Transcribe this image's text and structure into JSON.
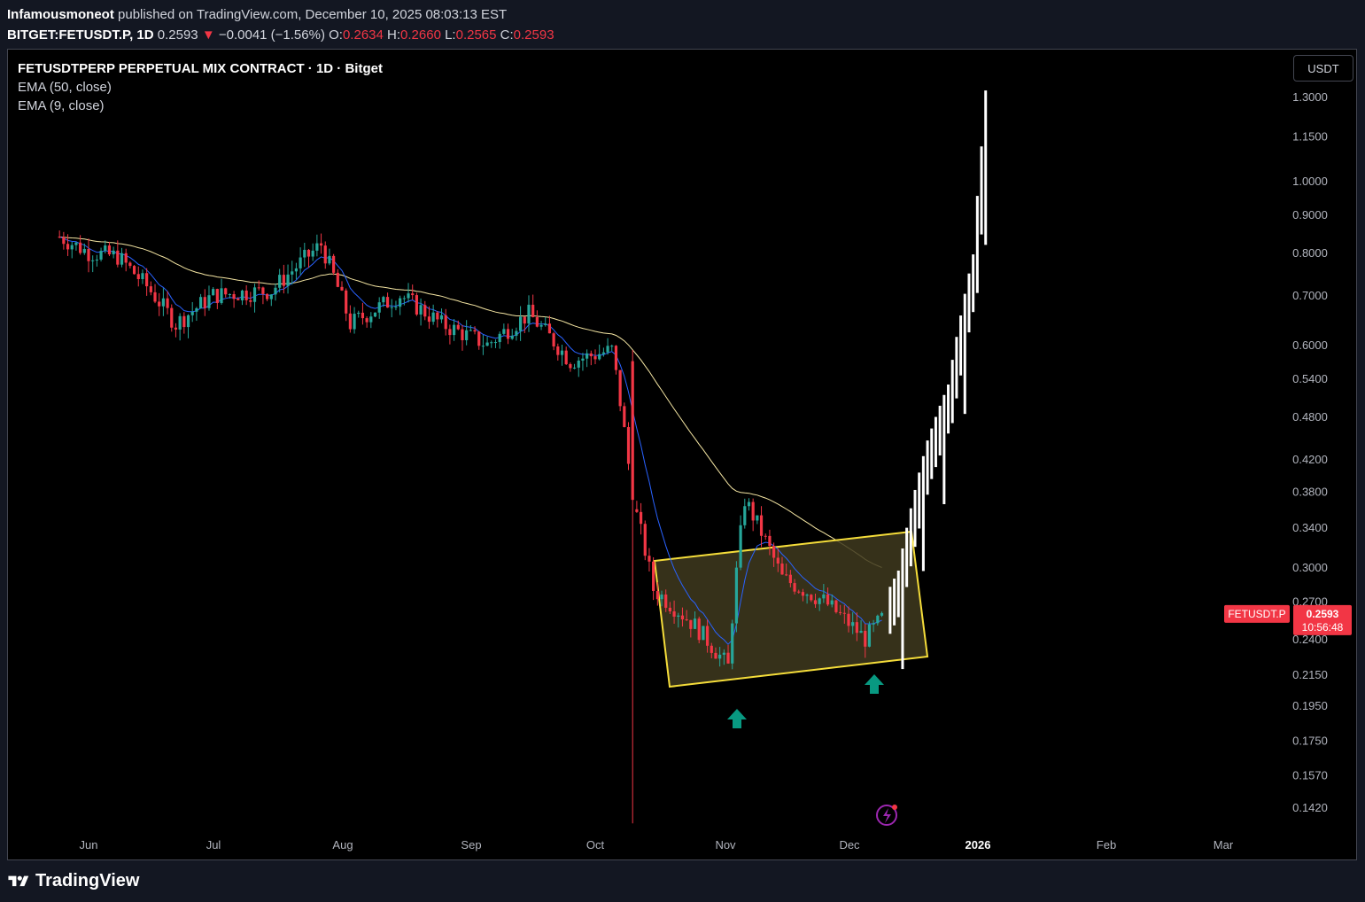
{
  "header": {
    "author": "Infamousmoneot",
    "published_text": "published on TradingView.com, December 10, 2025 08:03:13 EST"
  },
  "quote": {
    "symbol": "BITGET:FETUSDT.P, 1D",
    "last": "0.2593",
    "arrow": "▼",
    "change": "−0.0041 (−1.56%)",
    "o_label": "O:",
    "o": "0.2634",
    "h_label": "H:",
    "h": "0.2660",
    "l_label": "L:",
    "l": "0.2565",
    "c_label": "C:",
    "c": "0.2593"
  },
  "legend": {
    "title": "FETUSDTPERP PERPETUAL MIX CONTRACT · 1D · Bitget",
    "ema50": "EMA (50, close)",
    "ema9": "EMA (9, close)"
  },
  "currency_button": "USDT",
  "price_tag": {
    "symbol": "FETUSDT.P",
    "price": "0.2593",
    "countdown": "10:56:48"
  },
  "footer": {
    "brand": "TradingView"
  },
  "colors": {
    "up": "#26a69a",
    "down": "#f23645",
    "ema50": "#f5e6a3",
    "ema9": "#2962ff",
    "box_border": "#f5dd3a",
    "box_fill": "#3f3a1f",
    "projection": "#ffffff",
    "arrow": "#089981"
  },
  "chart_data": {
    "type": "candlestick",
    "symbol": "FETUSDT.P",
    "timeframe": "1D",
    "y_scale": "log",
    "y_ticks": [
      "1.3000",
      "1.1500",
      "1.0000",
      "0.9000",
      "0.8000",
      "0.7000",
      "0.6000",
      "0.5400",
      "0.4800",
      "0.4200",
      "0.3800",
      "0.3400",
      "0.3000",
      "0.2700",
      "0.2400",
      "0.2150",
      "0.1950",
      "0.1750",
      "0.1570",
      "0.1420"
    ],
    "x_ticks": [
      "Jun",
      "Jul",
      "Aug",
      "Sep",
      "Oct",
      "Nov",
      "Dec",
      "2026",
      "Feb",
      "Mar"
    ],
    "ylim": [
      0.13,
      1.42
    ],
    "close_series_approx": [
      {
        "date": "2025-05-25",
        "close": 0.84
      },
      {
        "date": "2025-06-01",
        "close": 0.8
      },
      {
        "date": "2025-06-08",
        "close": 0.79
      },
      {
        "date": "2025-06-15",
        "close": 0.72
      },
      {
        "date": "2025-06-22",
        "close": 0.64
      },
      {
        "date": "2025-07-01",
        "close": 0.7
      },
      {
        "date": "2025-07-15",
        "close": 0.71
      },
      {
        "date": "2025-07-27",
        "close": 0.82
      },
      {
        "date": "2025-08-03",
        "close": 0.64
      },
      {
        "date": "2025-08-15",
        "close": 0.7
      },
      {
        "date": "2025-08-25",
        "close": 0.64
      },
      {
        "date": "2025-09-05",
        "close": 0.6
      },
      {
        "date": "2025-09-15",
        "close": 0.66
      },
      {
        "date": "2025-09-25",
        "close": 0.57
      },
      {
        "date": "2025-10-05",
        "close": 0.59
      },
      {
        "date": "2025-10-10",
        "close": 0.37
      },
      {
        "date": "2025-10-15",
        "close": 0.28
      },
      {
        "date": "2025-10-25",
        "close": 0.25
      },
      {
        "date": "2025-11-02",
        "close": 0.22
      },
      {
        "date": "2025-11-06",
        "close": 0.37
      },
      {
        "date": "2025-11-15",
        "close": 0.29
      },
      {
        "date": "2025-11-25",
        "close": 0.27
      },
      {
        "date": "2025-12-05",
        "close": 0.24
      },
      {
        "date": "2025-12-10",
        "close": 0.2593
      }
    ],
    "projection_approx": [
      {
        "date": "2025-12-13",
        "close": 0.28
      },
      {
        "date": "2025-12-16",
        "close": 0.34
      },
      {
        "date": "2025-12-20",
        "close": 0.42
      },
      {
        "date": "2025-12-25",
        "close": 0.5
      },
      {
        "date": "2025-12-28",
        "close": 0.62
      },
      {
        "date": "2025-12-31",
        "close": 0.75
      },
      {
        "date": "2026-01-02",
        "close": 1.05
      },
      {
        "date": "2026-01-03",
        "close": 1.25
      }
    ],
    "annotations": [
      "channel box Oct–Dec 0.21–0.34",
      "up arrow near Nov 1",
      "up arrow near Dec 10"
    ]
  }
}
